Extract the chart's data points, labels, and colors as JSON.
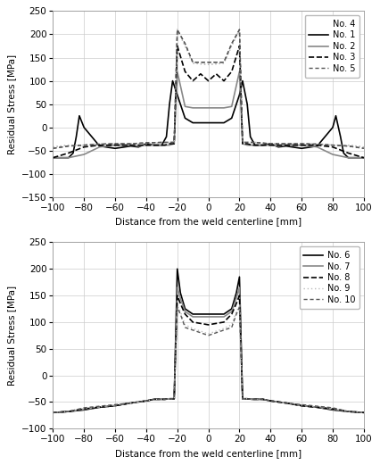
{
  "top_chart": {
    "ylabel": "Residual Stress [MPa]",
    "xlabel": "Distance from the weld centerline [mm]",
    "xlim": [
      -100,
      100
    ],
    "ylim": [
      -150,
      250
    ],
    "yticks": [
      -150,
      -100,
      -50,
      0,
      50,
      100,
      150,
      200,
      250
    ],
    "xticks": [
      -100,
      -80,
      -60,
      -40,
      -20,
      0,
      20,
      40,
      60,
      80,
      100
    ],
    "series": [
      {
        "label": "No. 1",
        "color": "#000000",
        "linestyle": "solid",
        "linewidth": 1.2,
        "x": [
          -100,
          -95,
          -90,
          -87,
          -85,
          -83,
          -80,
          -70,
          -60,
          -50,
          -45,
          -40,
          -35,
          -30,
          -27,
          -25,
          -23,
          -20,
          -15,
          -10,
          -5,
          0,
          5,
          10,
          15,
          20,
          22,
          25,
          27,
          30,
          35,
          40,
          45,
          50,
          60,
          70,
          80,
          82,
          85,
          87,
          90,
          95,
          100
        ],
        "y": [
          -65,
          -65,
          -65,
          -55,
          -20,
          25,
          0,
          -40,
          -45,
          -40,
          -42,
          -35,
          -38,
          -38,
          -20,
          50,
          100,
          70,
          20,
          10,
          10,
          10,
          10,
          10,
          20,
          70,
          100,
          50,
          -20,
          -38,
          -38,
          -35,
          -42,
          -40,
          -45,
          -40,
          0,
          25,
          -20,
          -55,
          -65,
          -65,
          -65
        ]
      },
      {
        "label": "No. 2",
        "color": "#888888",
        "linestyle": "solid",
        "linewidth": 1.2,
        "x": [
          -100,
          -90,
          -80,
          -75,
          -70,
          -60,
          -50,
          -45,
          -40,
          -30,
          -25,
          -22,
          -20,
          -15,
          -10,
          0,
          10,
          15,
          20,
          22,
          25,
          30,
          40,
          45,
          50,
          60,
          70,
          75,
          80,
          90,
          100
        ],
        "y": [
          -65,
          -65,
          -58,
          -50,
          -42,
          -38,
          -38,
          -40,
          -38,
          -38,
          -38,
          -35,
          120,
          45,
          42,
          42,
          42,
          45,
          120,
          -35,
          -38,
          -38,
          -38,
          -40,
          -38,
          -38,
          -42,
          -50,
          -58,
          -65,
          -65
        ]
      },
      {
        "label": "No. 3",
        "color": "#000000",
        "linestyle": "dashed",
        "linewidth": 1.2,
        "x": [
          -100,
          -90,
          -80,
          -70,
          -60,
          -50,
          -40,
          -30,
          -28,
          -25,
          -22,
          -20,
          -15,
          -10,
          -5,
          0,
          5,
          10,
          15,
          20,
          22,
          25,
          28,
          30,
          40,
          50,
          60,
          70,
          80,
          90,
          100
        ],
        "y": [
          -65,
          -55,
          -42,
          -38,
          -38,
          -38,
          -38,
          -38,
          -38,
          -35,
          -35,
          175,
          120,
          100,
          115,
          100,
          115,
          100,
          120,
          175,
          -35,
          -35,
          -38,
          -38,
          -38,
          -38,
          -38,
          -38,
          -42,
          -55,
          -65
        ]
      },
      {
        "label": "No. 4",
        "color": "#bbbbbb",
        "linestyle": "dotted",
        "linewidth": 1.0,
        "x": [
          -100,
          -90,
          -80,
          -70,
          -60,
          -50,
          -40,
          -30,
          -28,
          -25,
          -22,
          -20,
          -15,
          -10,
          0,
          10,
          15,
          20,
          22,
          25,
          28,
          30,
          40,
          50,
          60,
          70,
          80,
          90,
          100
        ],
        "y": [
          -42,
          -38,
          -38,
          -35,
          -35,
          -35,
          -35,
          -32,
          -32,
          -32,
          -32,
          210,
          175,
          138,
          135,
          138,
          175,
          210,
          -32,
          -32,
          -32,
          -32,
          -35,
          -35,
          -35,
          -35,
          -38,
          -38,
          -42
        ]
      },
      {
        "label": "No. 5",
        "color": "#555555",
        "linestyle": "dotted",
        "linewidth": 1.0,
        "x": [
          -100,
          -90,
          -80,
          -70,
          -60,
          -50,
          -40,
          -30,
          -28,
          -25,
          -22,
          -20,
          -15,
          -10,
          0,
          10,
          15,
          20,
          22,
          25,
          28,
          30,
          40,
          50,
          60,
          70,
          80,
          90,
          100
        ],
        "y": [
          -45,
          -40,
          -38,
          -36,
          -35,
          -35,
          -33,
          -32,
          -32,
          -32,
          -32,
          210,
          180,
          140,
          140,
          140,
          180,
          210,
          -32,
          -32,
          -32,
          -32,
          -35,
          -35,
          -35,
          -36,
          -38,
          -40,
          -45
        ]
      }
    ]
  },
  "bottom_chart": {
    "ylabel": "Residual Stress [MPa]",
    "xlabel": "Distance from the weld centerline [mm]",
    "xlim": [
      -100,
      100
    ],
    "ylim": [
      -100,
      250
    ],
    "yticks": [
      -100,
      -50,
      0,
      50,
      100,
      150,
      200,
      250
    ],
    "xticks": [
      -100,
      -80,
      -60,
      -40,
      -20,
      0,
      20,
      40,
      60,
      80,
      100
    ],
    "series": [
      {
        "label": "No. 6",
        "color": "#000000",
        "linestyle": "solid",
        "linewidth": 1.2,
        "x": [
          -100,
          -90,
          -80,
          -70,
          -60,
          -50,
          -45,
          -40,
          -35,
          -32,
          -30,
          -28,
          -25,
          -22,
          -20,
          -18,
          -15,
          -10,
          0,
          10,
          15,
          18,
          20,
          22,
          25,
          28,
          30,
          32,
          35,
          40,
          45,
          50,
          60,
          70,
          80,
          90,
          100
        ],
        "y": [
          -70,
          -68,
          -65,
          -60,
          -57,
          -52,
          -50,
          -48,
          -45,
          -45,
          -45,
          -45,
          -44,
          -44,
          200,
          155,
          125,
          115,
          115,
          115,
          125,
          155,
          185,
          -44,
          -44,
          -45,
          -45,
          -45,
          -45,
          -48,
          -50,
          -52,
          -57,
          -60,
          -65,
          -68,
          -70
        ]
      },
      {
        "label": "No. 7",
        "color": "#888888",
        "linestyle": "solid",
        "linewidth": 1.2,
        "x": [
          -100,
          -90,
          -80,
          -70,
          -60,
          -50,
          -45,
          -40,
          -35,
          -32,
          -30,
          -28,
          -25,
          -22,
          -20,
          -18,
          -15,
          -10,
          0,
          10,
          15,
          18,
          20,
          22,
          25,
          28,
          30,
          32,
          35,
          40,
          45,
          50,
          60,
          70,
          80,
          90,
          100
        ],
        "y": [
          -70,
          -68,
          -64,
          -60,
          -57,
          -52,
          -50,
          -48,
          -45,
          -45,
          -45,
          -45,
          -44,
          -44,
          165,
          145,
          120,
          110,
          110,
          110,
          120,
          145,
          165,
          -44,
          -44,
          -45,
          -45,
          -45,
          -45,
          -48,
          -50,
          -52,
          -57,
          -60,
          -64,
          -68,
          -70
        ]
      },
      {
        "label": "No. 8",
        "color": "#000000",
        "linestyle": "dashed",
        "linewidth": 1.2,
        "x": [
          -100,
          -90,
          -80,
          -70,
          -60,
          -50,
          -45,
          -40,
          -35,
          -32,
          -30,
          -28,
          -25,
          -22,
          -20,
          -18,
          -15,
          -10,
          0,
          10,
          15,
          18,
          20,
          22,
          25,
          28,
          30,
          32,
          35,
          40,
          45,
          50,
          60,
          70,
          80,
          90,
          100
        ],
        "y": [
          -70,
          -68,
          -63,
          -60,
          -57,
          -52,
          -50,
          -48,
          -45,
          -45,
          -45,
          -45,
          -44,
          -44,
          150,
          135,
          115,
          100,
          95,
          100,
          115,
          135,
          150,
          -44,
          -44,
          -45,
          -45,
          -45,
          -45,
          -48,
          -50,
          -52,
          -57,
          -60,
          -63,
          -68,
          -70
        ]
      },
      {
        "label": "No. 9",
        "color": "#bbbbbb",
        "linestyle": "dotted",
        "linewidth": 1.0,
        "x": [
          -100,
          -90,
          -80,
          -70,
          -60,
          -50,
          -45,
          -40,
          -35,
          -32,
          -30,
          -28,
          -25,
          -22,
          -20,
          -18,
          -15,
          -10,
          0,
          10,
          15,
          18,
          20,
          22,
          25,
          28,
          30,
          32,
          35,
          40,
          45,
          50,
          60,
          70,
          80,
          90,
          100
        ],
        "y": [
          -70,
          -68,
          -62,
          -59,
          -56,
          -52,
          -50,
          -48,
          -45,
          -45,
          -45,
          -45,
          -44,
          -44,
          130,
          120,
          95,
          88,
          78,
          88,
          95,
          120,
          130,
          -44,
          -44,
          -45,
          -45,
          -45,
          -45,
          -48,
          -50,
          -52,
          -56,
          -59,
          -62,
          -68,
          -70
        ]
      },
      {
        "label": "No. 10",
        "color": "#555555",
        "linestyle": "dotted",
        "linewidth": 1.0,
        "x": [
          -100,
          -90,
          -80,
          -70,
          -60,
          -50,
          -45,
          -40,
          -35,
          -32,
          -30,
          -28,
          -25,
          -22,
          -20,
          -18,
          -15,
          -10,
          0,
          10,
          15,
          18,
          20,
          22,
          25,
          28,
          30,
          32,
          35,
          40,
          45,
          50,
          60,
          70,
          80,
          90,
          100
        ],
        "y": [
          -70,
          -68,
          -61,
          -58,
          -55,
          -52,
          -50,
          -48,
          -45,
          -45,
          -45,
          -45,
          -44,
          -44,
          128,
          115,
          90,
          85,
          75,
          85,
          90,
          115,
          128,
          -44,
          -44,
          -45,
          -45,
          -45,
          -45,
          -48,
          -50,
          -52,
          -55,
          -58,
          -61,
          -68,
          -70
        ]
      }
    ]
  },
  "bg_color": "#ffffff",
  "grid_color": "#cccccc",
  "font_size": 7.5,
  "legend_fontsize": 7.0,
  "no4_dashes": [
    1,
    2
  ],
  "no5_dashes": [
    2,
    2
  ],
  "no9_dashes": [
    1,
    2
  ],
  "no10_dashes": [
    2,
    2
  ]
}
